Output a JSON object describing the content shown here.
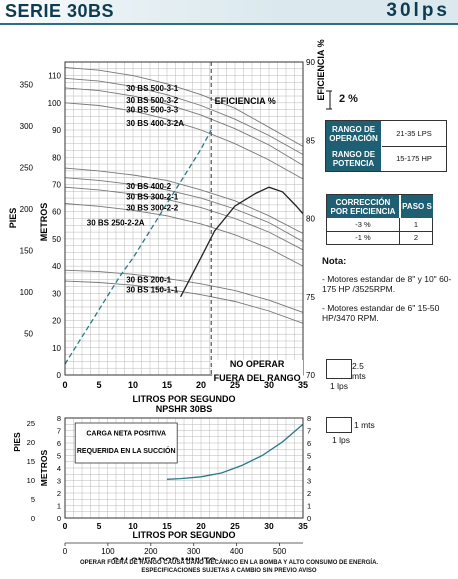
{
  "header": {
    "series": "SERIE 30BS",
    "flow": "30lps"
  },
  "chart_data": [
    {
      "type": "line",
      "name": "main",
      "x_axis": {
        "label": "LITROS POR SEGUNDO",
        "range": [
          0,
          35
        ],
        "ticks": [
          0,
          5,
          10,
          15,
          20,
          25,
          30,
          35
        ]
      },
      "y_axis_m": {
        "label": "METROS",
        "range": [
          0,
          115
        ],
        "ticks": [
          0,
          10,
          20,
          30,
          40,
          50,
          60,
          70,
          80,
          90,
          100,
          110
        ]
      },
      "y_axis_ft": {
        "label": "PIES",
        "ticks": [
          50,
          100,
          150,
          200,
          250,
          300,
          350
        ]
      },
      "y_axis_eff": {
        "label": "EFICIENCIA %",
        "range": [
          70,
          90
        ],
        "ticks": [
          70,
          75,
          80,
          85,
          90
        ]
      },
      "curve_labels": [
        {
          "text": "30 BS 500-3-1",
          "y": 105.5
        },
        {
          "text": "30 BS 500-3-2",
          "y": 101
        },
        {
          "text": "30 BS 500-3-3",
          "y": 97.5
        },
        {
          "text": "30 BS 400-3-2A",
          "y": 92.5
        },
        {
          "text": "30 BS 400-2",
          "y": 69.5
        },
        {
          "text": "30 BS 300-2-1",
          "y": 65.5
        },
        {
          "text": "30 BS 300-2-2",
          "y": 61.5
        },
        {
          "text": "30 BS 250-2-2A",
          "y": 56
        },
        {
          "text": "30 BS 200-1",
          "y": 35
        },
        {
          "text": "30 BS 150-1-1",
          "y": 31.5
        }
      ],
      "curves": [
        {
          "name": "30 BS 500-3-1",
          "x": [
            0,
            5,
            10,
            15,
            20,
            25,
            30,
            35
          ],
          "y": [
            113,
            112,
            110,
            107,
            103,
            98,
            91,
            84
          ]
        },
        {
          "name": "30 BS 500-3-2",
          "x": [
            0,
            5,
            10,
            15,
            20,
            25,
            30,
            35
          ],
          "y": [
            109,
            108,
            106,
            103,
            99,
            94,
            88,
            81
          ]
        },
        {
          "name": "30 BS 500-3-3",
          "x": [
            0,
            5,
            10,
            15,
            20,
            25,
            30,
            35
          ],
          "y": [
            105.5,
            104.5,
            102.5,
            99.5,
            95.5,
            90.5,
            84.5,
            77
          ]
        },
        {
          "name": "30 BS 400-3-2A",
          "x": [
            0,
            5,
            10,
            15,
            20,
            25,
            30,
            35
          ],
          "y": [
            100,
            99,
            97,
            94,
            90,
            85,
            79,
            72
          ]
        },
        {
          "name": "30 BS 400-2",
          "x": [
            0,
            5,
            10,
            15,
            20,
            25,
            30,
            35
          ],
          "y": [
            76,
            75,
            73.5,
            71.5,
            68,
            64,
            58.5,
            52
          ]
        },
        {
          "name": "30 BS 300-2-1",
          "x": [
            0,
            5,
            10,
            15,
            20,
            25,
            30,
            35
          ],
          "y": [
            72.5,
            71.5,
            70,
            68,
            65,
            61,
            56,
            49
          ]
        },
        {
          "name": "30 BS 300-2-2",
          "x": [
            0,
            5,
            10,
            15,
            20,
            25,
            30,
            35
          ],
          "y": [
            69,
            68,
            66.5,
            64.5,
            61.5,
            57.5,
            52.5,
            46
          ]
        },
        {
          "name": "30 BS 250-2-2A",
          "x": [
            0,
            5,
            10,
            15,
            20,
            25,
            30,
            35
          ],
          "y": [
            63,
            62,
            60.5,
            58.5,
            55.5,
            51.5,
            46.5,
            40
          ]
        },
        {
          "name": "30 BS 200-1",
          "x": [
            0,
            5,
            10,
            15,
            20,
            25,
            30,
            35
          ],
          "y": [
            38.5,
            38,
            37,
            35.5,
            33.5,
            31,
            27.5,
            23
          ]
        },
        {
          "name": "30 BS 150-1-1",
          "x": [
            0,
            5,
            10,
            15,
            20,
            25,
            30,
            35
          ],
          "y": [
            34.5,
            34,
            33,
            31.5,
            29.5,
            27,
            23.5,
            19
          ]
        }
      ],
      "efficiency": {
        "label": "EFICIENCIA %",
        "x": [
          17,
          20,
          22,
          25,
          28,
          30,
          32,
          34,
          35
        ],
        "eff": [
          75,
          77.5,
          79.2,
          80.8,
          81.6,
          82,
          81.7,
          80.8,
          80.3
        ]
      },
      "boundary": {
        "x": [
          0,
          2,
          4,
          6,
          8,
          10,
          12,
          14,
          16,
          18,
          20,
          21.5
        ],
        "y": [
          4,
          12,
          20,
          28,
          36,
          43,
          51,
          59,
          67,
          75,
          83,
          90
        ]
      },
      "limit_x": 21.5,
      "no_operar": [
        "NO OPERAR",
        "FUERA DEL RANGO"
      ]
    },
    {
      "type": "line",
      "name": "npshr",
      "title": "NPSHR 30BS",
      "x_axis": {
        "label": "LITROS POR SEGUNDO",
        "range": [
          0,
          35
        ],
        "ticks": [
          0,
          5,
          10,
          15,
          20,
          25,
          30,
          35
        ]
      },
      "x2_axis": {
        "label": "GALONES POR MINUTO",
        "ticks": [
          0,
          100,
          200,
          300,
          400,
          500
        ]
      },
      "y_axis_m": {
        "label": "METROS",
        "range": [
          0,
          8
        ],
        "ticks": [
          0,
          1,
          2,
          3,
          4,
          5,
          6,
          7,
          8
        ]
      },
      "y_axis_ft": {
        "label": "PIES",
        "ticks": [
          0,
          5,
          10,
          15,
          20,
          25
        ]
      },
      "annotation": [
        "CARGA NETA POSITIVA",
        "REQUERIDA EN LA SUCCIÓN"
      ],
      "curve": {
        "x": [
          15,
          17,
          20,
          23,
          26,
          29,
          32,
          35
        ],
        "y": [
          3.1,
          3.15,
          3.3,
          3.6,
          4.2,
          5.0,
          6.1,
          7.5
        ]
      }
    }
  ],
  "efficiency_scale": "2 %",
  "range_table": {
    "rows": [
      {
        "label": "RANGO DE OPERACIÓN",
        "value": "21-35 LPS"
      },
      {
        "label": "RANGO DE POTENCIA",
        "value": "15-175 HP"
      }
    ]
  },
  "correction_table": {
    "header": [
      "CORRECCIÓN POR EFICIENCIA",
      "PASO S"
    ],
    "rows": [
      [
        "-3 %",
        "1"
      ],
      [
        "-1 %",
        "2"
      ]
    ]
  },
  "notes": {
    "title": "Nota:",
    "items": [
      "- Motores estandar de 8\" y 10\" 60-175 HP /3525RPM.",
      "- Motores estandar de 6\" 15-50 HP/3470 RPM."
    ]
  },
  "scale_legend": [
    {
      "height": "2.5 mts",
      "flow": "1 lps"
    },
    {
      "height": "1 mts",
      "flow": "1 lps"
    }
  ],
  "footer": [
    "OPERAR FUERA DE RANGO CAUSA DAÑO MECÁNICO EN LA BOMBA Y ALTO CONSUMO DE ENERGÍA.",
    "ESPECIFICACIONES SUJETAS A CAMBIO SIN PREVIO AVISO"
  ],
  "colors": {
    "curve": "#777777",
    "boundary": "#2a7a8a",
    "grid": "#b8b8b8",
    "header_fill": "#1f5f73",
    "npshr": "#2a7a8a"
  }
}
